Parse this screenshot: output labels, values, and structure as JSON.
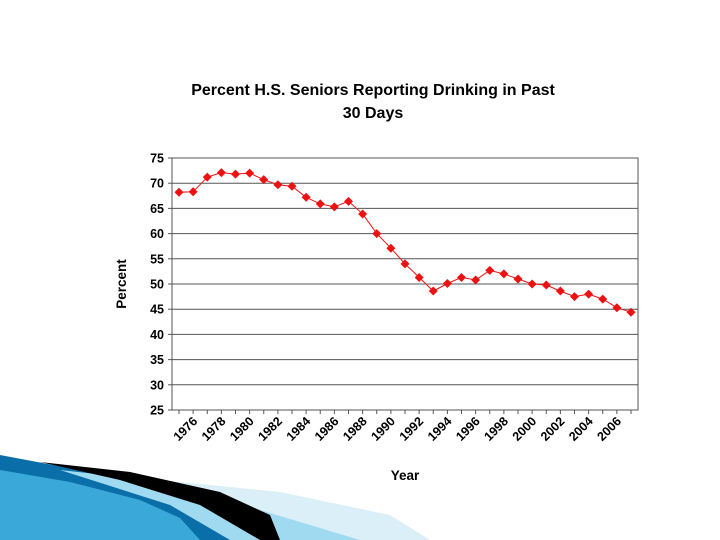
{
  "slide": {
    "accent_colors": [
      "#0a6fa8",
      "#3aa8d8",
      "#7ccbe8",
      "#000000"
    ]
  },
  "chart_data": {
    "type": "line",
    "title_lines": [
      "Percent H.S. Seniors Reporting Drinking in Past",
      "30 Days"
    ],
    "xlabel": "Year",
    "ylabel": "Percent",
    "ylim": [
      25,
      75
    ],
    "yticks": [
      25,
      30,
      35,
      40,
      45,
      50,
      55,
      60,
      65,
      70,
      75
    ],
    "xtick_labels": [
      "1976",
      "1978",
      "1980",
      "1982",
      "1984",
      "1986",
      "1988",
      "1990",
      "1992",
      "1994",
      "1996",
      "1998",
      "2000",
      "2002",
      "2004",
      "2006"
    ],
    "grid": true,
    "legend": "none",
    "series": [
      {
        "name": "Percent",
        "color": "#ee1111",
        "marker": "diamond",
        "x": [
          1975,
          1976,
          1977,
          1978,
          1979,
          1980,
          1981,
          1982,
          1983,
          1984,
          1985,
          1986,
          1987,
          1988,
          1989,
          1990,
          1991,
          1992,
          1993,
          1994,
          1995,
          1996,
          1997,
          1998,
          1999,
          2000,
          2001,
          2002,
          2003,
          2004,
          2005,
          2006,
          2007
        ],
        "values": [
          68.2,
          68.3,
          71.2,
          72.1,
          71.8,
          72.0,
          70.7,
          69.7,
          69.4,
          67.2,
          65.9,
          65.3,
          66.4,
          63.9,
          60.0,
          57.1,
          54.0,
          51.3,
          48.6,
          50.1,
          51.3,
          50.8,
          52.7,
          52.0,
          51.0,
          50.0,
          49.8,
          48.6,
          47.5,
          48.0,
          47.0,
          45.3,
          44.4
        ]
      }
    ]
  }
}
